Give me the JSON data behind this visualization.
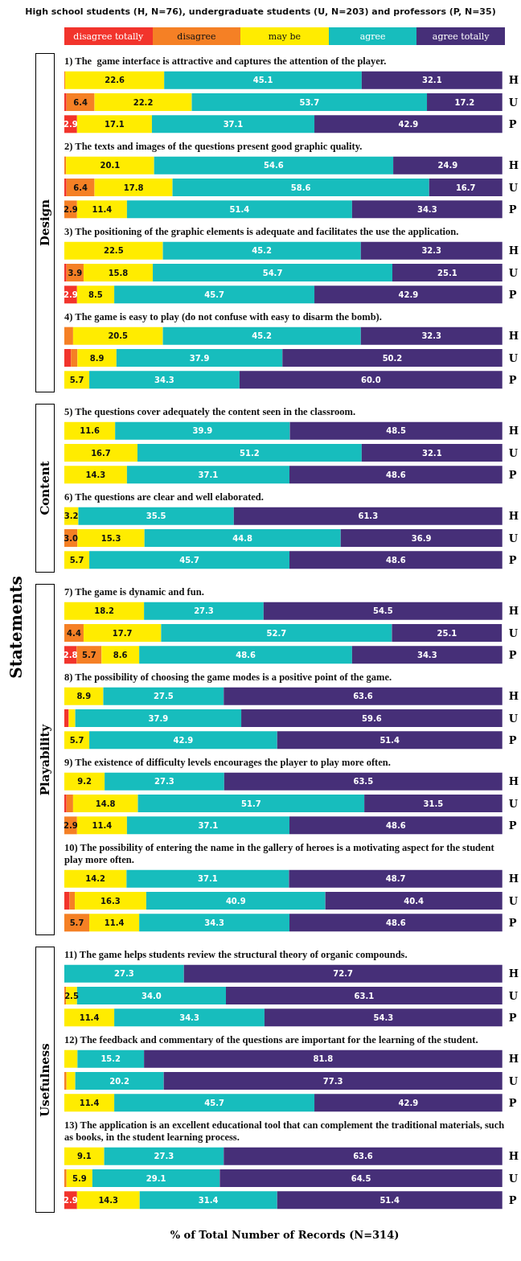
{
  "chart_data": [
    {
      "type": "bar",
      "orientation": "horizontal",
      "stacked": true,
      "legend": "top",
      "title": "High school students (H, N=76), undergraduate students (U, N=203) and professors (P, N=35)",
      "annotations": [
        "Statements"
      ],
      "ylabel": "Design",
      "subtitle": "1) The  game interface is attractive and captures the attention of the player.",
      "categories": [
        "H",
        "U",
        "P"
      ],
      "series": [
        {
          "name": "disagree totally",
          "color": "#f2342c",
          "values": [
            0,
            0.5,
            2.9
          ],
          "value_labels": [
            null,
            null,
            "2.9"
          ]
        },
        {
          "name": "disagree",
          "color": "#f58025",
          "values": [
            0.2,
            6.4,
            0
          ],
          "value_labels": [
            null,
            "6.4",
            null
          ]
        },
        {
          "name": "may be",
          "color": "#ffec00",
          "values": [
            22.6,
            22.2,
            17.1
          ],
          "value_labels": [
            "22.6",
            "22.2",
            "17.1"
          ]
        },
        {
          "name": "agree",
          "color": "#17bdbd",
          "values": [
            45.1,
            53.7,
            37.1
          ],
          "value_labels": [
            "45.1",
            "53.7",
            "37.1"
          ]
        },
        {
          "name": "agree totally",
          "color": "#462f78",
          "values": [
            32.1,
            17.2,
            42.9
          ],
          "value_labels": [
            "32.1",
            "17.2",
            "42.9"
          ]
        }
      ]
    },
    {
      "type": "bar",
      "orientation": "horizontal",
      "stacked": true,
      "subtitle": "2) The texts and images of the questions present good graphic quality.",
      "categories": [
        "H",
        "U",
        "P"
      ],
      "series": [
        {
          "color": "#f2342c",
          "values": [
            0,
            0.5,
            0
          ],
          "value_labels": [
            null,
            null,
            null
          ]
        },
        {
          "color": "#f58025",
          "values": [
            0.4,
            6.4,
            2.9
          ],
          "value_labels": [
            null,
            "6.4",
            "2.9"
          ]
        },
        {
          "color": "#ffec00",
          "values": [
            20.1,
            17.8,
            11.4
          ],
          "value_labels": [
            "20.1",
            "17.8",
            "11.4"
          ]
        },
        {
          "color": "#17bdbd",
          "values": [
            54.6,
            58.6,
            51.4
          ],
          "value_labels": [
            "54.6",
            "58.6",
            "51.4"
          ]
        },
        {
          "color": "#462f78",
          "values": [
            24.9,
            16.7,
            34.3
          ],
          "value_labels": [
            "24.9",
            "16.7",
            "34.3"
          ]
        }
      ]
    },
    {
      "type": "bar",
      "orientation": "horizontal",
      "stacked": true,
      "subtitle": "3) The positioning of the graphic elements is adequate and facilitates the use the application.",
      "categories": [
        "H",
        "U",
        "P"
      ],
      "series": [
        {
          "color": "#f2342c",
          "values": [
            0,
            0.5,
            2.9
          ],
          "value_labels": [
            null,
            null,
            "2.9"
          ]
        },
        {
          "color": "#f58025",
          "values": [
            0,
            3.9,
            0
          ],
          "value_labels": [
            null,
            "3.9",
            null
          ]
        },
        {
          "color": "#ffec00",
          "values": [
            22.5,
            15.8,
            8.5
          ],
          "value_labels": [
            "22.5",
            "15.8",
            "8.5"
          ]
        },
        {
          "color": "#17bdbd",
          "values": [
            45.2,
            54.7,
            45.7
          ],
          "value_labels": [
            "45.2",
            "54.7",
            "45.7"
          ]
        },
        {
          "color": "#462f78",
          "values": [
            32.3,
            25.1,
            42.9
          ],
          "value_labels": [
            "32.3",
            "25.1",
            "42.9"
          ]
        }
      ]
    },
    {
      "type": "bar",
      "orientation": "horizontal",
      "stacked": true,
      "subtitle": "4) The game is easy to play (do not confuse with easy to disarm the bomb).",
      "categories": [
        "H",
        "U",
        "P"
      ],
      "series": [
        {
          "color": "#f2342c",
          "values": [
            0,
            1.5,
            0
          ],
          "value_labels": [
            null,
            null,
            null
          ]
        },
        {
          "color": "#f58025",
          "values": [
            2.0,
            1.5,
            0
          ],
          "value_labels": [
            null,
            null,
            null
          ]
        },
        {
          "color": "#ffec00",
          "values": [
            20.5,
            8.9,
            5.7
          ],
          "value_labels": [
            "20.5",
            "8.9",
            "5.7"
          ]
        },
        {
          "color": "#17bdbd",
          "values": [
            45.2,
            37.9,
            34.3
          ],
          "value_labels": [
            "45.2",
            "37.9",
            "34.3"
          ]
        },
        {
          "color": "#462f78",
          "values": [
            32.3,
            50.2,
            60.0
          ],
          "value_labels": [
            "32.3",
            "50.2",
            "60.0"
          ]
        }
      ]
    },
    {
      "type": "bar",
      "orientation": "horizontal",
      "stacked": true,
      "ylabel": "Content",
      "subtitle": "5) The questions cover adequately the content seen in the classroom.",
      "categories": [
        "H",
        "U",
        "P"
      ],
      "series": [
        {
          "color": "#ffec00",
          "values": [
            11.6,
            16.7,
            14.3
          ],
          "value_labels": [
            "11.6",
            "16.7",
            "14.3"
          ]
        },
        {
          "color": "#17bdbd",
          "values": [
            39.9,
            51.2,
            37.1
          ],
          "value_labels": [
            "39.9",
            "51.2",
            "37.1"
          ]
        },
        {
          "color": "#462f78",
          "values": [
            48.5,
            32.1,
            48.6
          ],
          "value_labels": [
            "48.5",
            "32.1",
            "48.6"
          ]
        }
      ]
    },
    {
      "type": "bar",
      "orientation": "horizontal",
      "stacked": true,
      "subtitle": "6) The questions are clear and well elaborated.",
      "categories": [
        "H",
        "U",
        "P"
      ],
      "series": [
        {
          "color": "#f58025",
          "values": [
            0,
            3.0,
            0
          ],
          "value_labels": [
            null,
            "3.0",
            null
          ]
        },
        {
          "color": "#ffec00",
          "values": [
            3.2,
            15.3,
            5.7
          ],
          "value_labels": [
            "3.2",
            "15.3",
            "5.7"
          ]
        },
        {
          "color": "#17bdbd",
          "values": [
            35.5,
            44.8,
            45.7
          ],
          "value_labels": [
            "35.5",
            "44.8",
            "45.7"
          ]
        },
        {
          "color": "#462f78",
          "values": [
            61.3,
            36.9,
            48.6
          ],
          "value_labels": [
            "61.3",
            "36.9",
            "48.6"
          ]
        }
      ]
    },
    {
      "type": "bar",
      "orientation": "horizontal",
      "stacked": true,
      "ylabel": "Playability",
      "subtitle": "7) The game is dynamic and fun.",
      "categories": [
        "H",
        "U",
        "P"
      ],
      "series": [
        {
          "color": "#f2342c",
          "values": [
            0,
            0,
            2.8
          ],
          "value_labels": [
            null,
            null,
            "2.8"
          ]
        },
        {
          "color": "#f58025",
          "values": [
            0,
            4.4,
            5.7
          ],
          "value_labels": [
            null,
            "4.4",
            "5.7"
          ]
        },
        {
          "color": "#ffec00",
          "values": [
            18.2,
            17.7,
            8.6
          ],
          "value_labels": [
            "18.2",
            "17.7",
            "8.6"
          ]
        },
        {
          "color": "#17bdbd",
          "values": [
            27.3,
            52.7,
            48.6
          ],
          "value_labels": [
            "27.3",
            "52.7",
            "48.6"
          ]
        },
        {
          "color": "#462f78",
          "values": [
            54.5,
            25.1,
            34.3
          ],
          "value_labels": [
            "54.5",
            "25.1",
            "34.3"
          ]
        }
      ]
    },
    {
      "type": "bar",
      "orientation": "horizontal",
      "stacked": true,
      "subtitle": "8) The possibility of choosing the game modes is a positive point of the game.",
      "categories": [
        "H",
        "U",
        "P"
      ],
      "series": [
        {
          "color": "#f2342c",
          "values": [
            0,
            1.0,
            0
          ],
          "value_labels": [
            null,
            null,
            null
          ]
        },
        {
          "color": "#ffec00",
          "values": [
            8.9,
            1.5,
            5.7
          ],
          "value_labels": [
            "8.9",
            null,
            "5.7"
          ]
        },
        {
          "color": "#17bdbd",
          "values": [
            27.5,
            37.9,
            42.9
          ],
          "value_labels": [
            "27.5",
            "37.9",
            "42.9"
          ]
        },
        {
          "color": "#462f78",
          "values": [
            63.6,
            59.6,
            51.4
          ],
          "value_labels": [
            "63.6",
            "59.6",
            "51.4"
          ]
        }
      ]
    },
    {
      "type": "bar",
      "orientation": "horizontal",
      "stacked": true,
      "subtitle": "9) The existence of difficulty levels encourages the player to play more often.",
      "categories": [
        "H",
        "U",
        "P"
      ],
      "series": [
        {
          "color": "#f2342c",
          "values": [
            0,
            0.5,
            0
          ],
          "value_labels": [
            null,
            null,
            null
          ]
        },
        {
          "color": "#f58025",
          "values": [
            0,
            1.5,
            2.9
          ],
          "value_labels": [
            null,
            null,
            "2.9"
          ]
        },
        {
          "color": "#ffec00",
          "values": [
            9.2,
            14.8,
            11.4
          ],
          "value_labels": [
            "9.2",
            "14.8",
            "11.4"
          ]
        },
        {
          "color": "#17bdbd",
          "values": [
            27.3,
            51.7,
            37.1
          ],
          "value_labels": [
            "27.3",
            "51.7",
            "37.1"
          ]
        },
        {
          "color": "#462f78",
          "values": [
            63.5,
            31.5,
            48.6
          ],
          "value_labels": [
            "63.5",
            "31.5",
            "48.6"
          ]
        }
      ]
    },
    {
      "type": "bar",
      "orientation": "horizontal",
      "stacked": true,
      "subtitle": "10) The possibility of entering the name in the gallery of heroes is a motivating aspect for the student play more often.",
      "categories": [
        "H",
        "U",
        "P"
      ],
      "series": [
        {
          "color": "#f2342c",
          "values": [
            0,
            1.2,
            0
          ],
          "value_labels": [
            null,
            null,
            null
          ]
        },
        {
          "color": "#f58025",
          "values": [
            0,
            1.2,
            5.7
          ],
          "value_labels": [
            null,
            null,
            "5.7"
          ]
        },
        {
          "color": "#ffec00",
          "values": [
            14.2,
            16.3,
            11.4
          ],
          "value_labels": [
            "14.2",
            "16.3",
            "11.4"
          ]
        },
        {
          "color": "#17bdbd",
          "values": [
            37.1,
            40.9,
            34.3
          ],
          "value_labels": [
            "37.1",
            "40.9",
            "34.3"
          ]
        },
        {
          "color": "#462f78",
          "values": [
            48.7,
            40.4,
            48.6
          ],
          "value_labels": [
            "48.7",
            "40.4",
            "48.6"
          ]
        }
      ]
    },
    {
      "type": "bar",
      "orientation": "horizontal",
      "stacked": true,
      "ylabel": "Usefulness",
      "subtitle": "11) The game helps students review the structural theory of organic compounds.",
      "categories": [
        "H",
        "U",
        "P"
      ],
      "series": [
        {
          "color": "#f58025",
          "values": [
            0,
            0.4,
            0
          ],
          "value_labels": [
            null,
            null,
            null
          ]
        },
        {
          "color": "#ffec00",
          "values": [
            0,
            2.5,
            11.4
          ],
          "value_labels": [
            null,
            "2.5",
            "11.4"
          ]
        },
        {
          "color": "#17bdbd",
          "values": [
            27.3,
            34.0,
            34.3
          ],
          "value_labels": [
            "27.3",
            "34.0",
            "34.3"
          ]
        },
        {
          "color": "#462f78",
          "values": [
            72.7,
            63.1,
            54.3
          ],
          "value_labels": [
            "72.7",
            "63.1",
            "54.3"
          ]
        }
      ]
    },
    {
      "type": "bar",
      "orientation": "horizontal",
      "stacked": true,
      "subtitle": "12) The feedback and commentary of the questions are important for the learning of the student.",
      "categories": [
        "H",
        "U",
        "P"
      ],
      "series": [
        {
          "color": "#f58025",
          "values": [
            0,
            0.5,
            0
          ],
          "value_labels": [
            null,
            null,
            null
          ]
        },
        {
          "color": "#ffec00",
          "values": [
            3.0,
            2.0,
            11.4
          ],
          "value_labels": [
            null,
            null,
            "11.4"
          ]
        },
        {
          "color": "#17bdbd",
          "values": [
            15.2,
            20.2,
            45.7
          ],
          "value_labels": [
            "15.2",
            "20.2",
            "45.7"
          ]
        },
        {
          "color": "#462f78",
          "values": [
            81.8,
            77.3,
            42.9
          ],
          "value_labels": [
            "81.8",
            "77.3",
            "42.9"
          ]
        }
      ]
    },
    {
      "type": "bar",
      "orientation": "horizontal",
      "stacked": true,
      "xlabel": "% of Total Number of Records (N=314)",
      "subtitle": "13) The application is an excellent educational tool that can complement the traditional materials, such as books, in the student learning process.",
      "categories": [
        "H",
        "U",
        "P"
      ],
      "series": [
        {
          "color": "#f2342c",
          "values": [
            0,
            0,
            2.9
          ],
          "value_labels": [
            null,
            null,
            "2.9"
          ]
        },
        {
          "color": "#f58025",
          "values": [
            0,
            0.5,
            0
          ],
          "value_labels": [
            null,
            null,
            null
          ]
        },
        {
          "color": "#ffec00",
          "values": [
            9.1,
            5.9,
            14.3
          ],
          "value_labels": [
            "9.1",
            "5.9",
            "14.3"
          ]
        },
        {
          "color": "#17bdbd",
          "values": [
            27.3,
            29.1,
            31.4
          ],
          "value_labels": [
            "27.3",
            "29.1",
            "31.4"
          ]
        },
        {
          "color": "#462f78",
          "values": [
            63.6,
            64.5,
            51.4
          ],
          "value_labels": [
            "63.6",
            "64.5",
            "51.4"
          ]
        }
      ]
    }
  ]
}
